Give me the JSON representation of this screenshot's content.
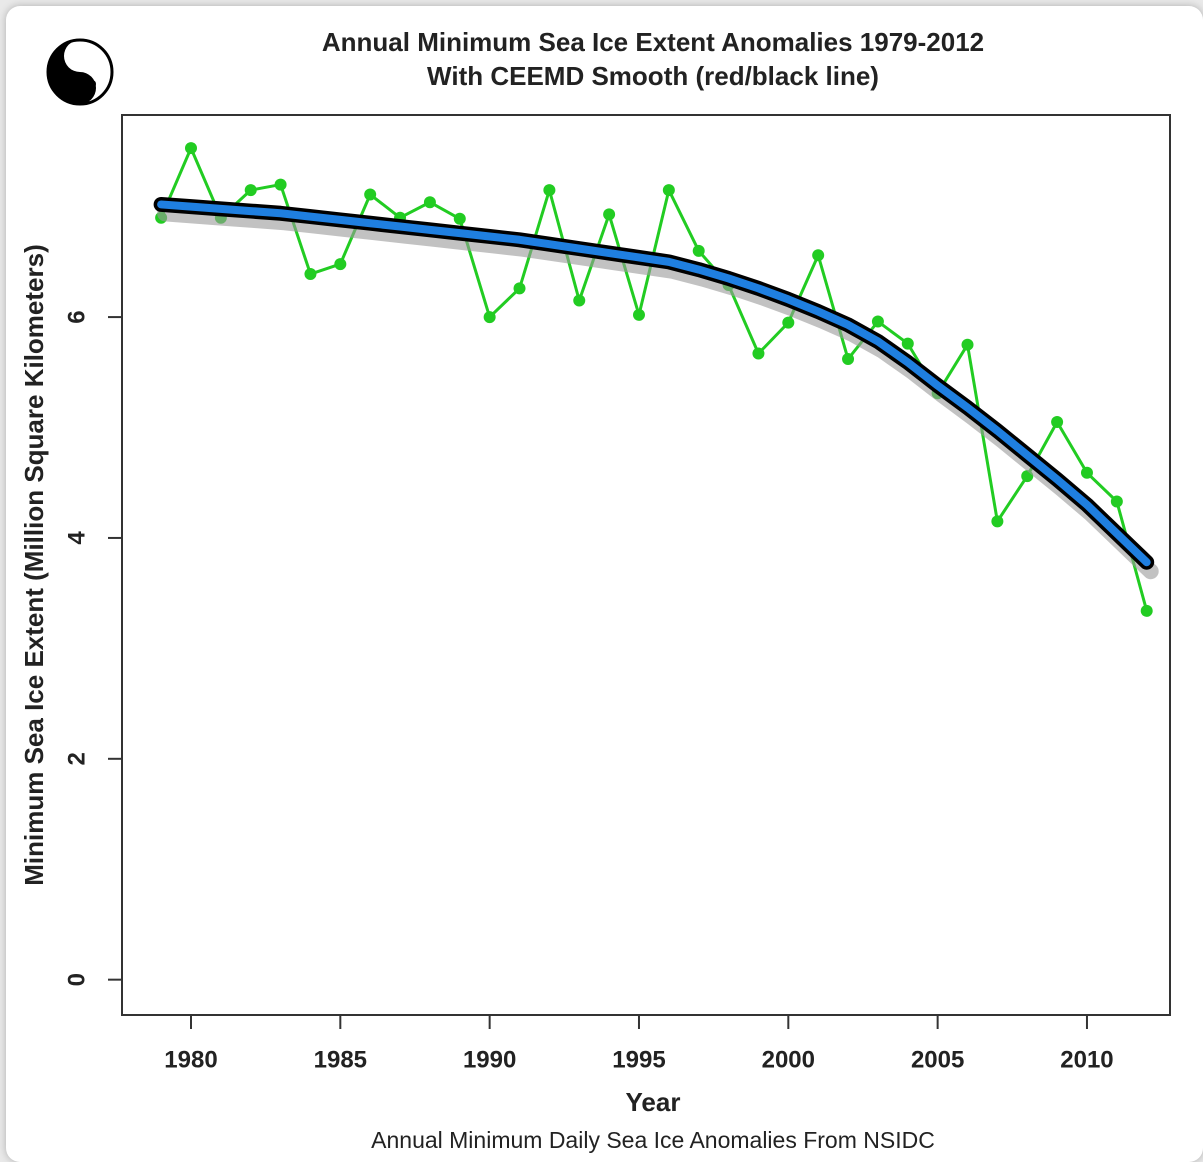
{
  "chart_data": {
    "type": "line",
    "title": "Annual Minimum Sea Ice Extent Anomalies 1979-2012",
    "subtitle": "With CEEMD Smooth (red/black line)",
    "x_label": "Year",
    "y_label": "Minimum Sea Ice Extent (Million Square Kilometers)",
    "caption": "Annual Minimum Daily Sea Ice Anomalies From NSIDC",
    "x": [
      1979,
      1980,
      1981,
      1982,
      1983,
      1984,
      1985,
      1986,
      1987,
      1988,
      1989,
      1990,
      1991,
      1992,
      1993,
      1994,
      1995,
      1996,
      1997,
      1998,
      1999,
      2000,
      2001,
      2002,
      2003,
      2004,
      2005,
      2006,
      2007,
      2008,
      2009,
      2010,
      2011,
      2012
    ],
    "series": [
      {
        "color": "#22cc22",
        "markers": true,
        "values": [
          6.9,
          7.53,
          6.9,
          7.15,
          7.2,
          6.39,
          6.48,
          7.11,
          6.9,
          7.04,
          6.89,
          6.0,
          6.26,
          7.15,
          6.15,
          6.93,
          6.02,
          7.15,
          6.6,
          6.29,
          5.67,
          5.95,
          6.56,
          5.62,
          5.96,
          5.76,
          5.31,
          5.75,
          4.15,
          4.56,
          5.05,
          4.59,
          4.33,
          3.34
        ]
      },
      {
        "color": "#1f7fe0",
        "outline": "#000000",
        "shadow": "#999999",
        "markers": false,
        "values": [
          7.02,
          7.0,
          6.98,
          6.96,
          6.94,
          6.91,
          6.88,
          6.85,
          6.82,
          6.79,
          6.76,
          6.73,
          6.7,
          6.66,
          6.62,
          6.58,
          6.54,
          6.5,
          6.43,
          6.35,
          6.26,
          6.16,
          6.05,
          5.93,
          5.78,
          5.59,
          5.38,
          5.18,
          4.97,
          4.75,
          4.53,
          4.3,
          4.04,
          3.78
        ]
      }
    ],
    "xlim": [
      1977.69,
      2012.78
    ],
    "xticks": [
      1980,
      1985,
      1990,
      1995,
      2000,
      2005,
      2010
    ],
    "ylim": [
      -0.32,
      7.83
    ],
    "yticks": [
      0,
      2,
      4,
      6
    ],
    "grid": false
  }
}
